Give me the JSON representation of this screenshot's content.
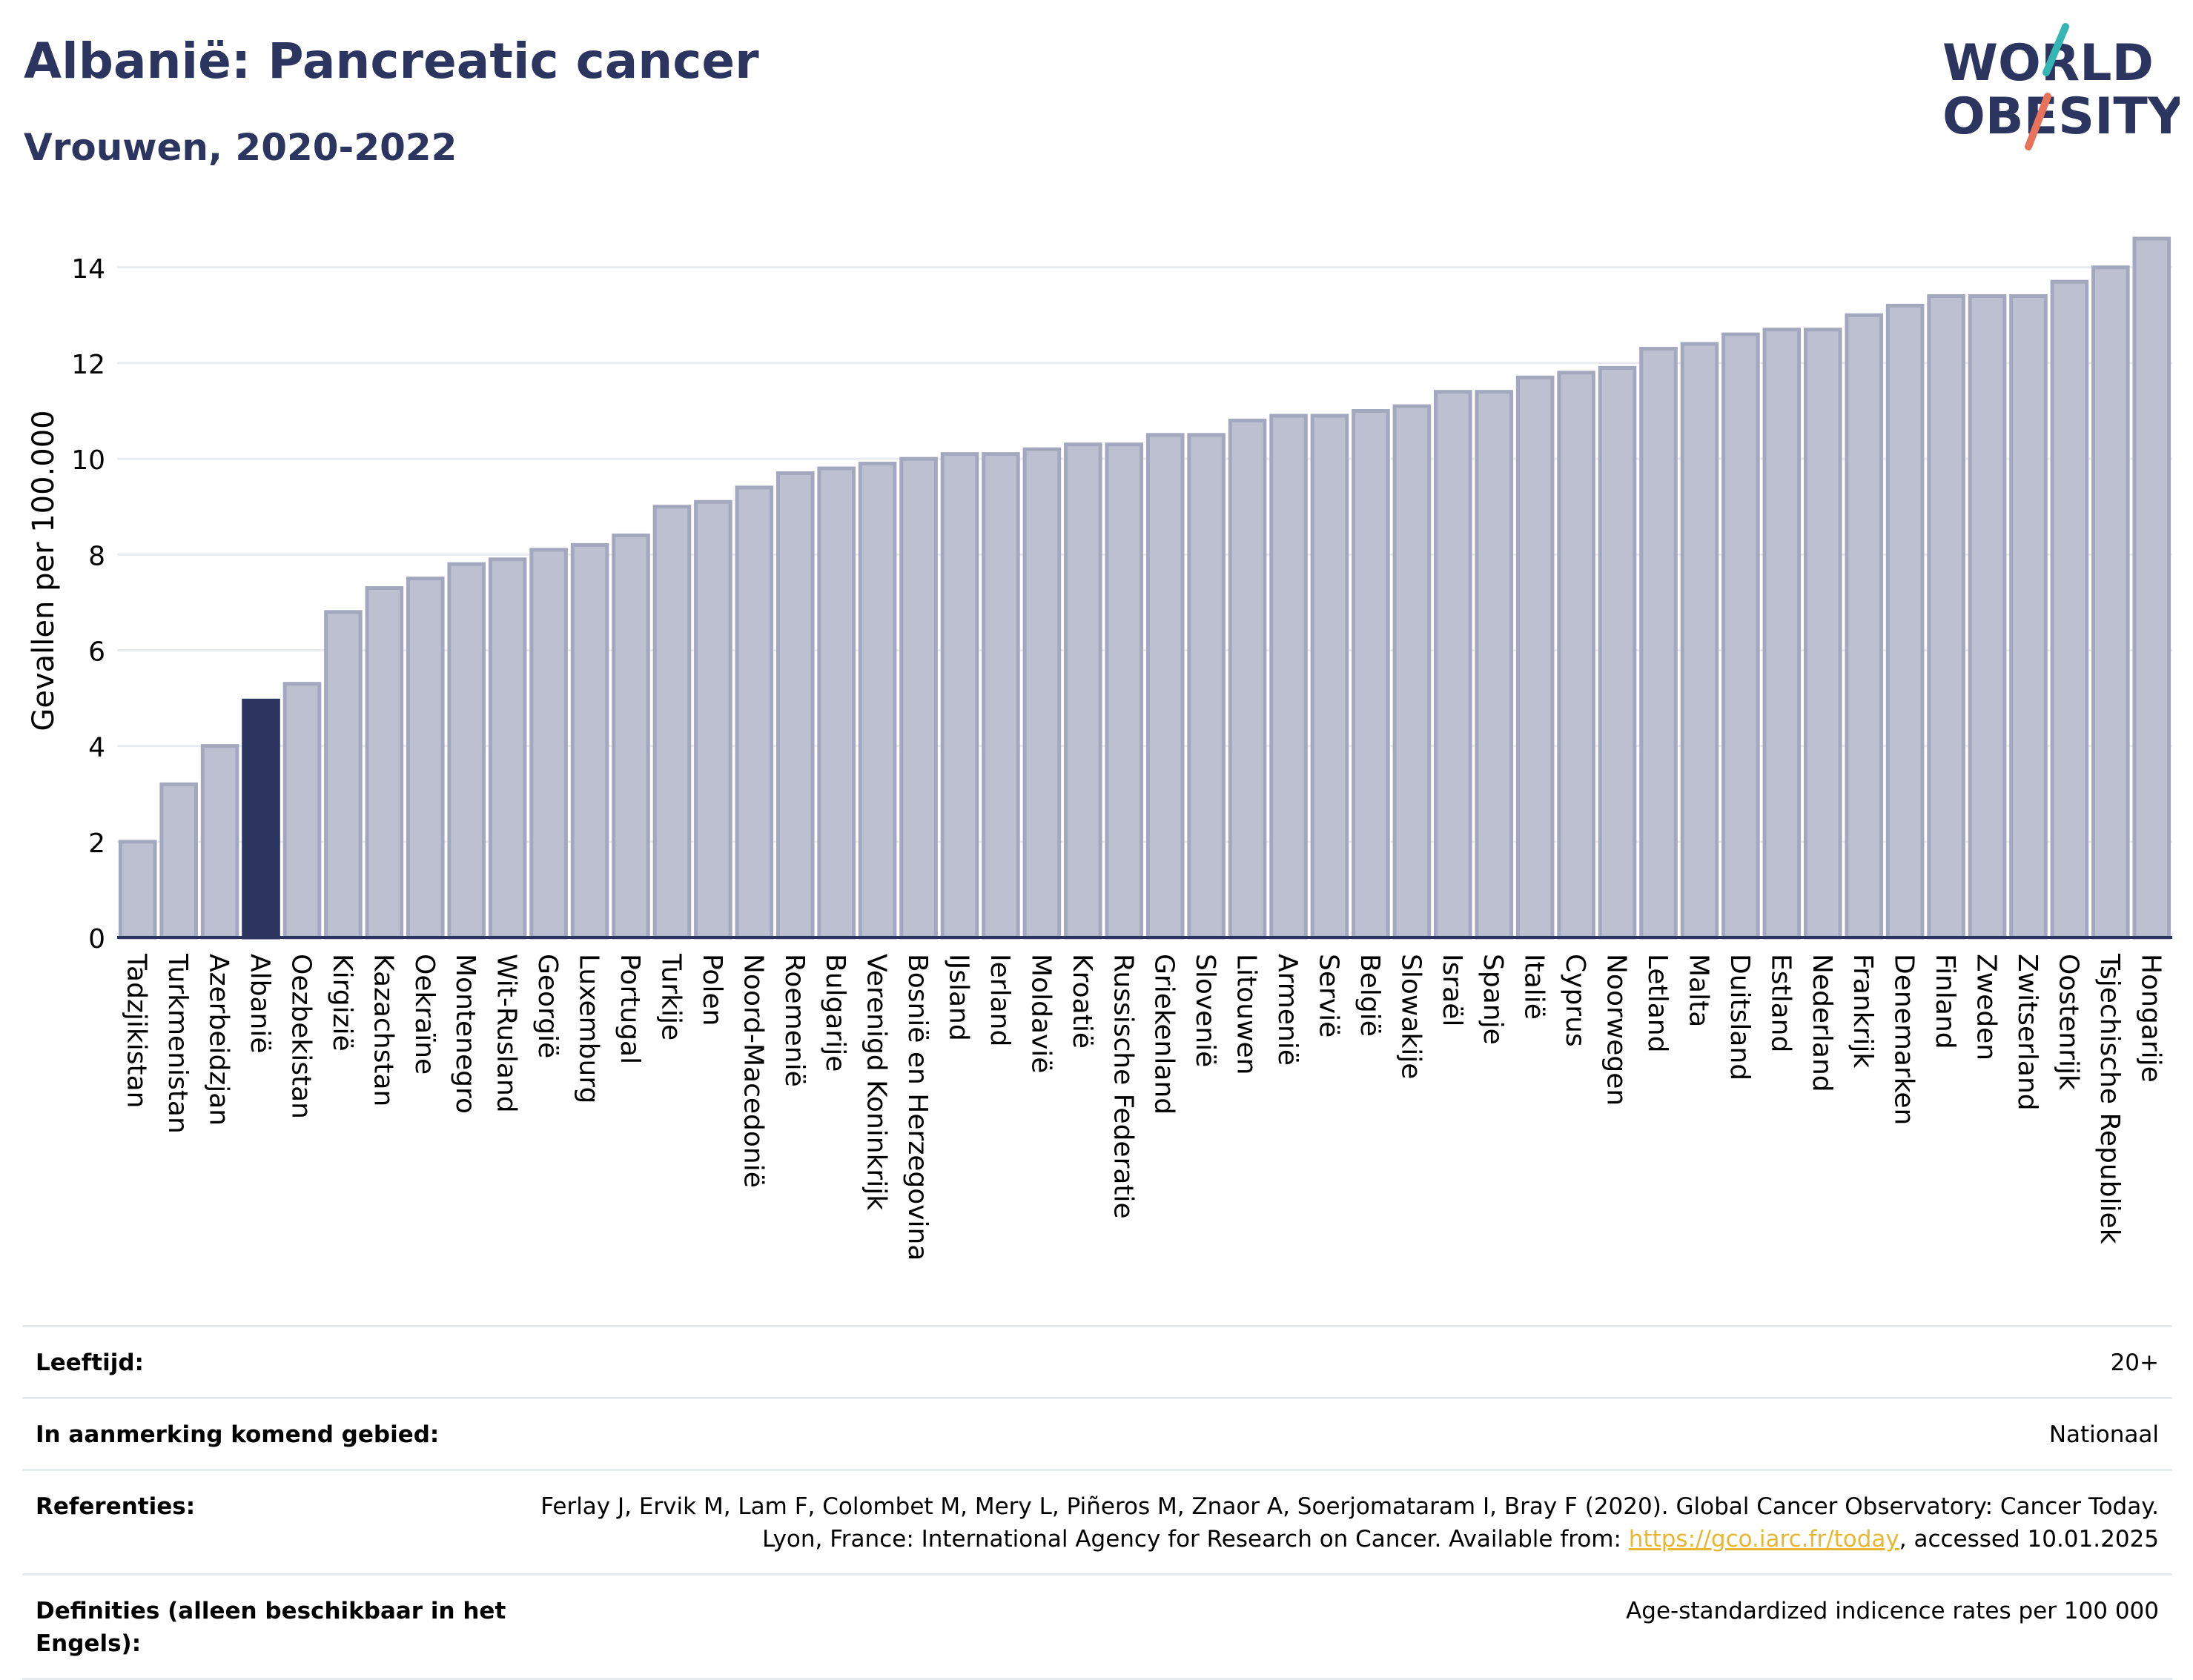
{
  "title": "Albanië: Pancreatic cancer",
  "subtitle": "Vrouwen, 2020-2022",
  "logo": {
    "line1": "WORLD",
    "line2": "OBESITY"
  },
  "colors": {
    "highlight": "#2b3560",
    "bar": "#bcc0d0",
    "bar_stroke": "#a3a8bf",
    "grid": "#e8ebf0",
    "link": "#e8b731",
    "title": "#2b3560"
  },
  "chart_data": {
    "type": "bar",
    "ylabel": "Gevallen per 100.000",
    "xlabel": "",
    "ylim": [
      0,
      14.6
    ],
    "yticks": [
      0,
      2,
      4,
      6,
      8,
      10,
      12,
      14
    ],
    "grid": true,
    "highlight": "Albanië",
    "categories": [
      "Tadzjikistan",
      "Turkmenistan",
      "Azerbeidzjan",
      "Albanië",
      "Oezbekistan",
      "Kirgizië",
      "Kazachstan",
      "Oekraïne",
      "Montenegro",
      "Wit-Rusland",
      "Georgië",
      "Luxemburg",
      "Portugal",
      "Turkije",
      "Polen",
      "Noord-Macedonië",
      "Roemenië",
      "Bulgarije",
      "Verenigd Koninkrijk",
      "Bosnië en Herzegovina",
      "IJsland",
      "Ierland",
      "Moldavië",
      "Kroatië",
      "Russische Federatie",
      "Griekenland",
      "Slovenië",
      "Litouwen",
      "Armenië",
      "Servië",
      "België",
      "Slowakije",
      "Israël",
      "Spanje",
      "Italië",
      "Cyprus",
      "Noorwegen",
      "Letland",
      "Malta",
      "Duitsland",
      "Estland",
      "Nederland",
      "Frankrijk",
      "Denemarken",
      "Finland",
      "Zweden",
      "Zwitserland",
      "Oostenrijk",
      "Tsjechische Republiek",
      "Hongarije"
    ],
    "values": [
      2.0,
      3.2,
      4.0,
      4.95,
      5.3,
      6.8,
      7.3,
      7.5,
      7.8,
      7.9,
      8.1,
      8.2,
      8.4,
      9.0,
      9.1,
      9.4,
      9.7,
      9.8,
      9.9,
      10.0,
      10.1,
      10.1,
      10.2,
      10.3,
      10.3,
      10.5,
      10.5,
      10.8,
      10.9,
      10.9,
      11.0,
      11.1,
      11.4,
      11.4,
      11.7,
      11.8,
      11.9,
      12.3,
      12.4,
      12.6,
      12.7,
      12.7,
      13.0,
      13.2,
      13.4,
      13.4,
      13.4,
      13.7,
      14.0,
      14.6
    ]
  },
  "info": [
    {
      "label": "Leeftijd:",
      "value": "20+"
    },
    {
      "label": "In aanmerking komend gebied:",
      "value": "Nationaal"
    },
    {
      "label": "Referenties:",
      "value_pre": "Ferlay J, Ervik M, Lam F, Colombet M, Mery L, Piñeros M, Znaor A, Soerjomataram I, Bray F (2020). Global Cancer Observatory: Cancer Today. Lyon, France: International Agency for Research on Cancer. Available from: ",
      "link": "https://gco.iarc.fr/today",
      "value_post": ", accessed 10.01.2025"
    },
    {
      "label": "Definities (alleen beschikbaar in het Engels):",
      "value": "Age-standardized indicence rates per 100 000"
    }
  ]
}
